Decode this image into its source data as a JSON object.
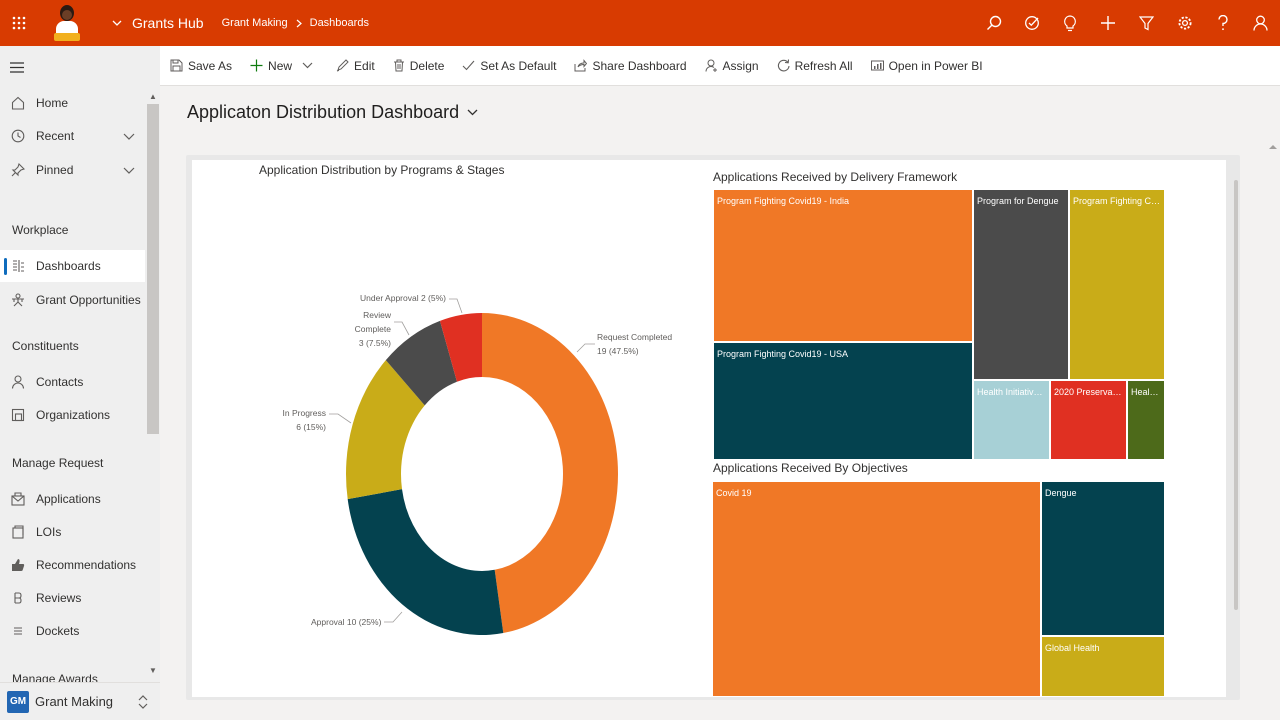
{
  "app": {
    "title": "Grants Hub",
    "breadcrumb": [
      "Grant Making",
      "Dashboards"
    ]
  },
  "colors": {
    "brand_bar": "#d83b01",
    "orange": "#f07826",
    "dark_teal": "#04424f",
    "mustard": "#c9ac18",
    "dark_gray": "#4b4b4b",
    "red": "#e03022",
    "light_blue": "#a7d0d6",
    "olive": "#4d6a1a",
    "accent_blue": "#0f6cbd"
  },
  "top_icons": [
    "search-icon",
    "task-icon",
    "lightbulb-icon",
    "plus-icon",
    "filter-icon",
    "gear-icon",
    "help-icon",
    "user-icon"
  ],
  "sidebar": {
    "top_items": [
      {
        "label": "Home",
        "icon": "home-icon"
      },
      {
        "label": "Recent",
        "icon": "clock-icon"
      },
      {
        "label": "Pinned",
        "icon": "pin-icon"
      }
    ],
    "groups": [
      {
        "label": "Workplace",
        "items": [
          {
            "label": "Dashboards",
            "icon": "dashboard-icon",
            "active": true
          },
          {
            "label": "Grant Opportunities",
            "icon": "opportunity-icon"
          }
        ]
      },
      {
        "label": "Constituents",
        "items": [
          {
            "label": "Contacts",
            "icon": "person-icon"
          },
          {
            "label": "Organizations",
            "icon": "organization-icon"
          }
        ]
      },
      {
        "label": "Manage Request",
        "items": [
          {
            "label": "Applications",
            "icon": "application-icon"
          },
          {
            "label": "LOIs",
            "icon": "loi-icon"
          },
          {
            "label": "Recommendations",
            "icon": "thumbs-up-icon"
          },
          {
            "label": "Reviews",
            "icon": "review-icon"
          },
          {
            "label": "Dockets",
            "icon": "docket-icon"
          }
        ]
      },
      {
        "label": "Manage Awards",
        "items": []
      }
    ],
    "area": {
      "badge": "GM",
      "name": "Grant Making"
    }
  },
  "commands": [
    {
      "label": "Save As",
      "icon": "save-as-icon"
    },
    {
      "label": "New",
      "icon": "plus-icon"
    },
    {
      "label": "Edit",
      "icon": "pencil-icon"
    },
    {
      "label": "Delete",
      "icon": "trash-icon"
    },
    {
      "label": "Set As Default",
      "icon": "check-icon"
    },
    {
      "label": "Share Dashboard",
      "icon": "share-icon"
    },
    {
      "label": "Assign",
      "icon": "assign-icon"
    },
    {
      "label": "Refresh All",
      "icon": "refresh-icon"
    },
    {
      "label": "Open in Power BI",
      "icon": "powerbi-icon"
    }
  ],
  "dashboard": {
    "title": "Applicaton Distribution Dashboard"
  },
  "chart_data": [
    {
      "type": "pie",
      "title": "Application Distribution by Programs & Stages",
      "donut": true,
      "slices": [
        {
          "name": "Request Completed",
          "value": 19,
          "percent": "47.5%",
          "label": "Request Completed",
          "value_label": "19 (47.5%)",
          "color": "#f07826"
        },
        {
          "name": "Approval",
          "value": 10,
          "percent": "25%",
          "label": "Approval 10 (25%)",
          "color": "#04424f"
        },
        {
          "name": "In Progress",
          "value": 6,
          "percent": "15%",
          "label": "In Progress",
          "value_label": "6 (15%)",
          "color": "#c9ac18"
        },
        {
          "name": "Review Complete",
          "value": 3,
          "percent": "7.5%",
          "label": "Review Complete",
          "value_label": "3 (7.5%)",
          "color": "#4b4b4b"
        },
        {
          "name": "Under Approval",
          "value": 2,
          "percent": "5%",
          "label": "Under Approval 2 (5%)",
          "color": "#e03022"
        }
      ]
    },
    {
      "type": "treemap",
      "title": "Applications Received by Delivery Framework",
      "items": [
        {
          "label": "Program Fighting Covid19 - India",
          "color": "#f07826"
        },
        {
          "label": "Program Fighting Covid19 - USA",
          "color": "#04424f"
        },
        {
          "label": "Program for Dengue",
          "color": "#4b4b4b"
        },
        {
          "label": "Program Fighting Co...",
          "color": "#c9ac18"
        },
        {
          "label": "Health Initiatives...",
          "color": "#a7d0d6"
        },
        {
          "label": "2020 Preservatio...",
          "color": "#e03022"
        },
        {
          "label": "Health...",
          "color": "#4d6a1a"
        }
      ]
    },
    {
      "type": "treemap",
      "title": "Applications Received By Objectives",
      "items": [
        {
          "label": "Covid 19",
          "color": "#f07826"
        },
        {
          "label": "Dengue",
          "color": "#04424f"
        },
        {
          "label": "Global Health",
          "color": "#c9ac18"
        }
      ]
    }
  ]
}
